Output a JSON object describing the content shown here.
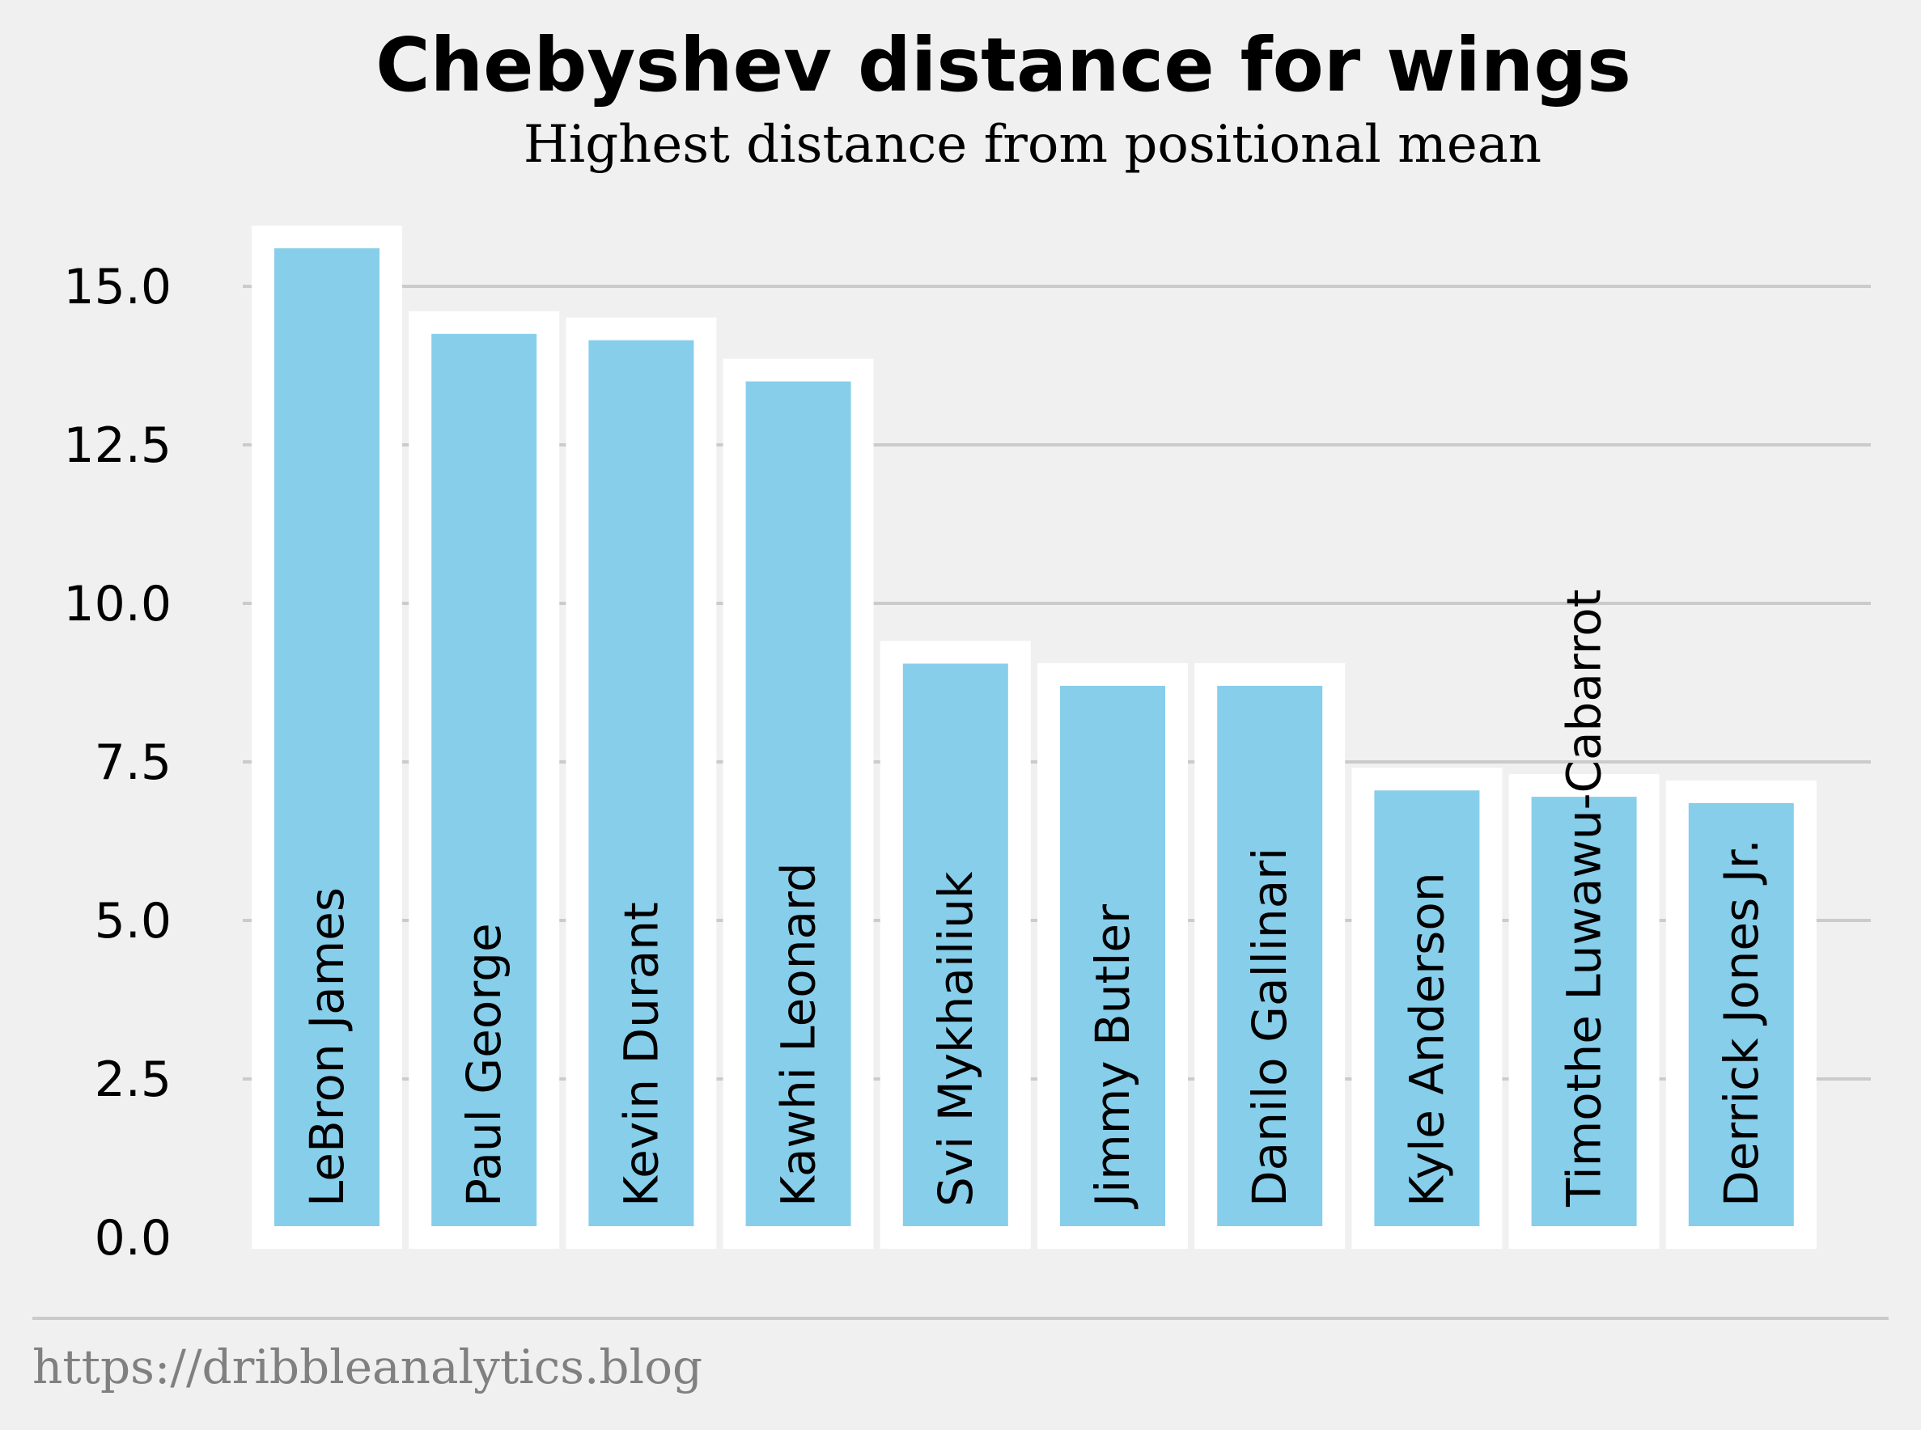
{
  "chart_data": {
    "type": "bar",
    "title": "Chebyshev distance for wings",
    "subtitle": "Highest distance from positional mean",
    "xlabel": "",
    "ylabel": "",
    "categories": [
      "LeBron James",
      "Paul George",
      "Kevin Durant",
      "Kawhi Leonard",
      "Svi Mykhailiuk",
      "Jimmy Butler",
      "Danilo Gallinari",
      "Kyle Anderson",
      "Timothe Luwawu-Cabarrot",
      "Derrick Jones Jr."
    ],
    "values": [
      15.6,
      14.25,
      14.15,
      13.5,
      9.05,
      8.7,
      8.7,
      7.05,
      6.95,
      6.85
    ],
    "ylim": [
      0,
      16
    ],
    "yticks": [
      "0.0",
      "2.5",
      "5.0",
      "7.5",
      "10.0",
      "12.5",
      "15.0"
    ],
    "grid": "horizontal",
    "colors": {
      "bar": "#87ceeb",
      "bar_edge": "#ffffff",
      "grid": "#cbcbcb",
      "background": "#f0f0f0"
    }
  },
  "footer": {
    "source": "https://dribbleanalytics.blog"
  }
}
